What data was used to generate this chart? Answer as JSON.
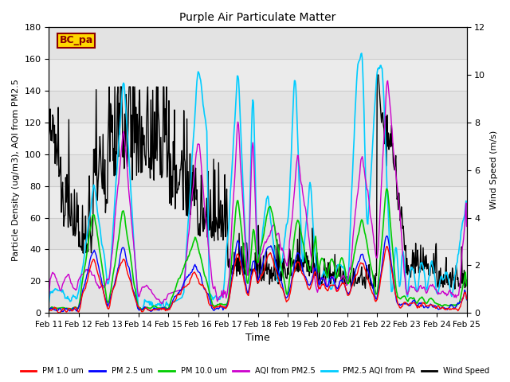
{
  "title": "Purple Air Particulate Matter",
  "xlabel": "Time",
  "ylabel_left": "Particle Density (ug/m3), AQI from PM2.5",
  "ylabel_right": "Wind Speed (m/s)",
  "annotation": "BC_pa",
  "annotation_color": "#8B0000",
  "annotation_bg": "#FFD700",
  "xlim": [
    0,
    336
  ],
  "ylim_left": [
    0,
    180
  ],
  "ylim_right": [
    0,
    12
  ],
  "xtick_positions": [
    0,
    24,
    48,
    72,
    96,
    120,
    144,
    168,
    192,
    216,
    240,
    264,
    288,
    312,
    336
  ],
  "xtick_labels": [
    "Feb 11",
    "Feb 12",
    "Feb 13",
    "Feb 14",
    "Feb 15",
    "Feb 16",
    "Feb 17",
    "Feb 18",
    "Feb 19",
    "Feb 20",
    "Feb 21",
    "Feb 22",
    "Feb 23",
    "Feb 24",
    "Feb 25"
  ],
  "ytick_left": [
    0,
    20,
    40,
    60,
    80,
    100,
    120,
    140,
    160,
    180
  ],
  "ytick_right": [
    0,
    2,
    4,
    6,
    8,
    10,
    12
  ],
  "series": {
    "pm1": {
      "color": "#FF0000",
      "label": "PM 1.0 um",
      "lw": 1.0
    },
    "pm25": {
      "color": "#0000FF",
      "label": "PM 2.5 um",
      "lw": 1.0
    },
    "pm10": {
      "color": "#00CC00",
      "label": "PM 10.0 um",
      "lw": 1.2
    },
    "aqi_pm25": {
      "color": "#CC00CC",
      "label": "AQI from PM2.5",
      "lw": 1.0
    },
    "aqi_pa": {
      "color": "#00CCFF",
      "label": "PM2.5 AQI from PA",
      "lw": 1.2
    },
    "wind": {
      "color": "#000000",
      "label": "Wind Speed",
      "lw": 1.0
    }
  },
  "grid_color": "#CCCCCC",
  "plot_bg": "#EBEBEB",
  "stripe_bg": "#DCDCDC"
}
